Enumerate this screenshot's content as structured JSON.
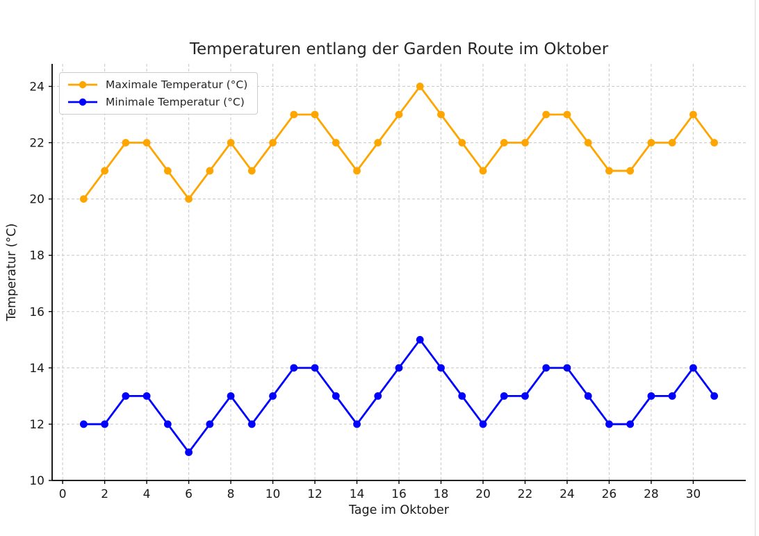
{
  "chart_data": {
    "type": "line",
    "title": "Temperaturen entlang der Garden Route im Oktober",
    "xlabel": "Tage im Oktober",
    "ylabel": "Temperatur (°C)",
    "x": [
      1,
      2,
      3,
      4,
      5,
      6,
      7,
      8,
      9,
      10,
      11,
      12,
      13,
      14,
      15,
      16,
      17,
      18,
      19,
      20,
      21,
      22,
      23,
      24,
      25,
      26,
      27,
      28,
      29,
      30,
      31
    ],
    "series": [
      {
        "name": "Maximale Temperatur (°C)",
        "color": "#FFA500",
        "values": [
          20,
          21,
          22,
          22,
          21,
          20,
          21,
          22,
          21,
          22,
          23,
          23,
          22,
          21,
          22,
          23,
          24,
          23,
          22,
          21,
          22,
          22,
          23,
          23,
          22,
          21,
          21,
          22,
          22,
          23,
          22
        ]
      },
      {
        "name": "Minimale Temperatur (°C)",
        "color": "#0000FF",
        "values": [
          12,
          12,
          13,
          13,
          12,
          11,
          12,
          13,
          12,
          13,
          14,
          14,
          13,
          12,
          13,
          14,
          15,
          14,
          13,
          12,
          13,
          13,
          14,
          14,
          13,
          12,
          12,
          13,
          13,
          14,
          13
        ]
      }
    ],
    "xlim": [
      -0.5,
      32.5
    ],
    "ylim": [
      10,
      24.8
    ],
    "xticks": [
      0,
      2,
      4,
      6,
      8,
      10,
      12,
      14,
      16,
      18,
      20,
      22,
      24,
      26,
      28,
      30
    ],
    "yticks": [
      10,
      12,
      14,
      16,
      18,
      20,
      22,
      24
    ],
    "grid": true,
    "grid_color": "#cccccc",
    "axis_color": "#000000",
    "tick_label_color": "#1a1a1a",
    "legend_position": "upper left"
  }
}
